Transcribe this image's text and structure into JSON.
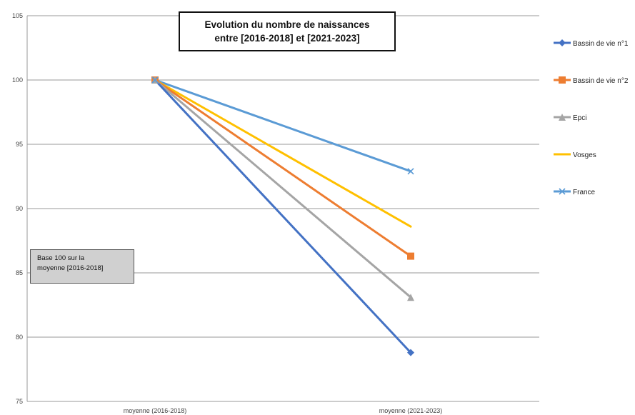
{
  "chart_data": {
    "type": "line",
    "title_lines": [
      "Evolution du nombre de naissances",
      "entre [2016-2018] et [2021-2023]"
    ],
    "annotation_lines": [
      "Base 100 sur la",
      "moyenne [2016-2018]"
    ],
    "categories": [
      "moyenne (2016-2018)",
      "moyenne (2021-2023)"
    ],
    "ylim": [
      75,
      105
    ],
    "yticks": [
      75,
      80,
      85,
      90,
      95,
      100,
      105
    ],
    "grid": true,
    "legend_position": "right",
    "series": [
      {
        "name": "Bassin de vie n°1",
        "values": [
          100,
          78.8
        ],
        "color": "#4472c4",
        "marker": "diamond"
      },
      {
        "name": "Bassin de vie n°2",
        "values": [
          100,
          86.3
        ],
        "color": "#ed7d31",
        "marker": "square"
      },
      {
        "name": "Epci",
        "values": [
          100,
          83.1
        ],
        "color": "#a5a5a5",
        "marker": "triangle"
      },
      {
        "name": "Vosges",
        "values": [
          100,
          88.6
        ],
        "color": "#ffc000",
        "marker": "none"
      },
      {
        "name": "France",
        "values": [
          100,
          92.9
        ],
        "color": "#5b9bd5",
        "marker": "x"
      }
    ]
  }
}
